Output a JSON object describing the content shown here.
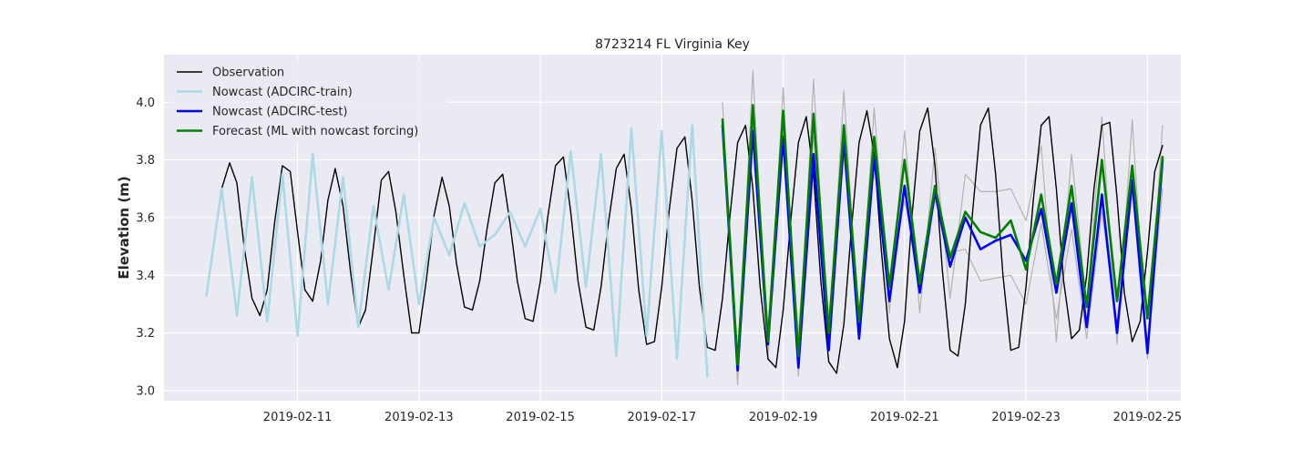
{
  "chart_data": {
    "type": "line",
    "title": "8723214 FL Virginia Key",
    "xlabel": "",
    "ylabel": "Elevation (m)",
    "x_unit": "days since 2019-02-10 00:00",
    "xlim": [
      -1.2,
      15.55
    ],
    "ylim": [
      2.965,
      4.165
    ],
    "x_ticks": [
      {
        "x": 1,
        "label": "2019-02-11"
      },
      {
        "x": 3,
        "label": "2019-02-13"
      },
      {
        "x": 5,
        "label": "2019-02-15"
      },
      {
        "x": 7,
        "label": "2019-02-17"
      },
      {
        "x": 9,
        "label": "2019-02-19"
      },
      {
        "x": 11,
        "label": "2019-02-21"
      },
      {
        "x": 13,
        "label": "2019-02-23"
      },
      {
        "x": 15,
        "label": "2019-02-25"
      }
    ],
    "y_ticks": [
      {
        "y": 3.0,
        "label": "3.0"
      },
      {
        "y": 3.2,
        "label": "3.2"
      },
      {
        "y": 3.4,
        "label": "3.4"
      },
      {
        "y": 3.6,
        "label": "3.6"
      },
      {
        "y": 3.8,
        "label": "3.8"
      },
      {
        "y": 4.0,
        "label": "4.0"
      }
    ],
    "grid": true,
    "legend_position": "top-left",
    "background": "#eaeaf2",
    "series": [
      {
        "name": "Observation",
        "color": "#000000",
        "width": 1.4,
        "x": [
          -0.5,
          -0.38,
          -0.25,
          -0.12,
          0.0,
          0.12,
          0.25,
          0.38,
          0.5,
          0.62,
          0.75,
          0.88,
          1.0,
          1.12,
          1.25,
          1.38,
          1.5,
          1.62,
          1.75,
          1.88,
          2.0,
          2.12,
          2.25,
          2.38,
          2.5,
          2.62,
          2.75,
          2.88,
          3.0,
          3.12,
          3.25,
          3.38,
          3.5,
          3.62,
          3.75,
          3.88,
          4.0,
          4.12,
          4.25,
          4.38,
          4.5,
          4.62,
          4.75,
          4.88,
          5.0,
          5.12,
          5.25,
          5.38,
          5.5,
          5.62,
          5.75,
          5.88,
          6.0,
          6.12,
          6.25,
          6.38,
          6.5,
          6.62,
          6.75,
          6.88,
          7.0,
          7.12,
          7.25,
          7.38,
          7.5,
          7.62,
          7.75,
          7.88,
          8.0,
          8.12,
          8.25,
          8.38,
          8.5,
          8.62,
          8.75,
          8.88,
          9.0,
          9.12,
          9.25,
          9.38,
          9.5,
          9.62,
          9.75,
          9.88,
          10.0,
          10.12,
          10.25,
          10.38,
          10.5,
          10.62,
          10.75,
          10.88,
          11.0,
          11.12,
          11.25,
          11.38,
          11.5,
          11.62,
          11.75,
          11.88,
          12.0,
          12.12,
          12.25,
          12.38,
          12.5,
          12.62,
          12.75,
          12.88,
          13.0,
          13.12,
          13.25,
          13.38,
          13.5,
          13.62,
          13.75,
          13.88,
          14.0,
          14.12,
          14.25,
          14.38,
          14.5,
          14.62,
          14.75,
          14.88,
          15.0,
          15.12,
          15.25
        ],
        "y": [
          3.33,
          3.5,
          3.7,
          3.79,
          3.72,
          3.5,
          3.32,
          3.26,
          3.35,
          3.58,
          3.78,
          3.76,
          3.55,
          3.35,
          3.31,
          3.45,
          3.66,
          3.77,
          3.64,
          3.4,
          3.22,
          3.28,
          3.5,
          3.73,
          3.76,
          3.62,
          3.4,
          3.2,
          3.2,
          3.38,
          3.61,
          3.74,
          3.64,
          3.44,
          3.29,
          3.28,
          3.38,
          3.56,
          3.72,
          3.75,
          3.58,
          3.38,
          3.25,
          3.24,
          3.38,
          3.6,
          3.78,
          3.81,
          3.62,
          3.38,
          3.22,
          3.21,
          3.36,
          3.58,
          3.77,
          3.82,
          3.63,
          3.35,
          3.16,
          3.17,
          3.36,
          3.62,
          3.84,
          3.88,
          3.66,
          3.36,
          3.15,
          3.14,
          3.32,
          3.6,
          3.86,
          3.92,
          3.7,
          3.36,
          3.11,
          3.08,
          3.28,
          3.58,
          3.86,
          3.95,
          3.75,
          3.38,
          3.1,
          3.06,
          3.23,
          3.55,
          3.86,
          3.97,
          3.82,
          3.48,
          3.18,
          3.08,
          3.24,
          3.6,
          3.9,
          3.98,
          3.78,
          3.42,
          3.14,
          3.12,
          3.3,
          3.62,
          3.92,
          3.98,
          3.75,
          3.4,
          3.14,
          3.15,
          3.36,
          3.66,
          3.92,
          3.95,
          3.7,
          3.38,
          3.18,
          3.21,
          3.4,
          3.7,
          3.92,
          3.93,
          3.67,
          3.34,
          3.17,
          3.24,
          3.48,
          3.76,
          3.85
        ]
      },
      {
        "name": "Nowcast (ADCIRC-train)",
        "color": "#add8e6",
        "width": 2.6,
        "x": [
          -0.5,
          -0.25,
          0.0,
          0.25,
          0.5,
          0.75,
          1.0,
          1.25,
          1.5,
          1.75,
          2.0,
          2.25,
          2.5,
          2.75,
          3.0,
          3.25,
          3.5,
          3.75,
          4.0,
          4.25,
          4.5,
          4.75,
          5.0,
          5.25,
          5.5,
          5.75,
          6.0,
          6.25,
          6.5,
          6.75,
          7.0,
          7.25,
          7.5,
          7.75
        ],
        "y": [
          3.33,
          3.7,
          3.26,
          3.74,
          3.24,
          3.75,
          3.19,
          3.82,
          3.3,
          3.74,
          3.22,
          3.64,
          3.35,
          3.68,
          3.3,
          3.6,
          3.47,
          3.65,
          3.5,
          3.54,
          3.62,
          3.5,
          3.63,
          3.34,
          3.83,
          3.36,
          3.82,
          3.12,
          3.91,
          3.19,
          3.9,
          3.11,
          3.92,
          3.05
        ]
      },
      {
        "name": "Nowcast (ADCIRC-test)",
        "color": "#0000ff",
        "width": 2.6,
        "x": [
          8.0,
          8.25,
          8.5,
          8.75,
          9.0,
          9.25,
          9.5,
          9.75,
          10.0,
          10.25,
          10.5,
          10.75,
          11.0,
          11.25,
          11.5,
          11.75,
          12.0,
          12.25,
          12.5,
          12.75,
          13.0,
          13.25,
          13.5,
          13.75,
          14.0,
          14.25,
          14.5,
          14.75,
          15.0,
          15.25
        ],
        "y": [
          3.92,
          3.07,
          3.9,
          3.16,
          3.88,
          3.08,
          3.82,
          3.14,
          3.87,
          3.18,
          3.81,
          3.31,
          3.71,
          3.34,
          3.69,
          3.43,
          3.6,
          3.49,
          3.52,
          3.54,
          3.45,
          3.63,
          3.34,
          3.65,
          3.22,
          3.68,
          3.2,
          3.73,
          3.13,
          3.8
        ]
      },
      {
        "name": "Forecast (ML with nowcast forcing)",
        "color": "#008000",
        "width": 2.6,
        "x": [
          8.0,
          8.25,
          8.5,
          8.75,
          9.0,
          9.25,
          9.5,
          9.75,
          10.0,
          10.25,
          10.5,
          10.75,
          11.0,
          11.25,
          11.5,
          11.75,
          12.0,
          12.25,
          12.5,
          12.75,
          13.0,
          13.25,
          13.5,
          13.75,
          14.0,
          14.25,
          14.5,
          14.75,
          15.0,
          15.25
        ],
        "y": [
          3.94,
          3.09,
          3.99,
          3.17,
          3.97,
          3.12,
          3.96,
          3.2,
          3.92,
          3.24,
          3.88,
          3.36,
          3.8,
          3.37,
          3.71,
          3.46,
          3.62,
          3.55,
          3.53,
          3.59,
          3.42,
          3.68,
          3.37,
          3.71,
          3.29,
          3.8,
          3.31,
          3.78,
          3.25,
          3.81
        ]
      },
      {
        "name": "",
        "color": "#b3b3b3",
        "width": 1.2,
        "x": [
          8.0,
          8.25,
          8.5,
          8.75,
          9.0,
          9.25,
          9.5,
          9.75,
          10.0,
          10.25,
          10.5,
          10.75,
          11.0,
          11.25,
          11.5,
          11.75,
          12.0,
          12.25,
          12.5,
          12.75,
          13.0,
          13.25,
          13.5,
          13.75,
          14.0,
          14.25,
          14.5,
          14.75,
          15.0,
          15.25
        ],
        "y": [
          4.0,
          3.02,
          4.11,
          3.11,
          4.05,
          3.05,
          4.08,
          3.16,
          4.04,
          3.2,
          3.98,
          3.27,
          3.9,
          3.27,
          3.84,
          3.32,
          3.75,
          3.69,
          3.69,
          3.7,
          3.59,
          3.85,
          3.17,
          3.82,
          3.29,
          3.95,
          3.16,
          3.94,
          3.11,
          3.92
        ]
      },
      {
        "name": "",
        "color": "#b3b3b3",
        "width": 1.2,
        "x": [
          8.0,
          8.25,
          8.5,
          8.75,
          9.0,
          9.25,
          9.5,
          9.75,
          10.0,
          10.25,
          10.5,
          10.75,
          11.0,
          11.25,
          11.5,
          11.75,
          12.0,
          12.25,
          12.5,
          12.75,
          13.0,
          13.25,
          13.5,
          13.75,
          14.0,
          14.25,
          14.5,
          14.75,
          15.0,
          15.25
        ],
        "y": [
          3.88,
          3.1,
          3.92,
          3.22,
          3.9,
          3.2,
          3.88,
          3.26,
          3.82,
          3.25,
          3.8,
          3.36,
          3.66,
          3.4,
          3.66,
          3.48,
          3.49,
          3.38,
          3.39,
          3.4,
          3.3,
          3.58,
          3.25,
          3.56,
          3.18,
          3.62,
          3.23,
          3.69,
          3.13,
          3.7
        ]
      }
    ]
  }
}
